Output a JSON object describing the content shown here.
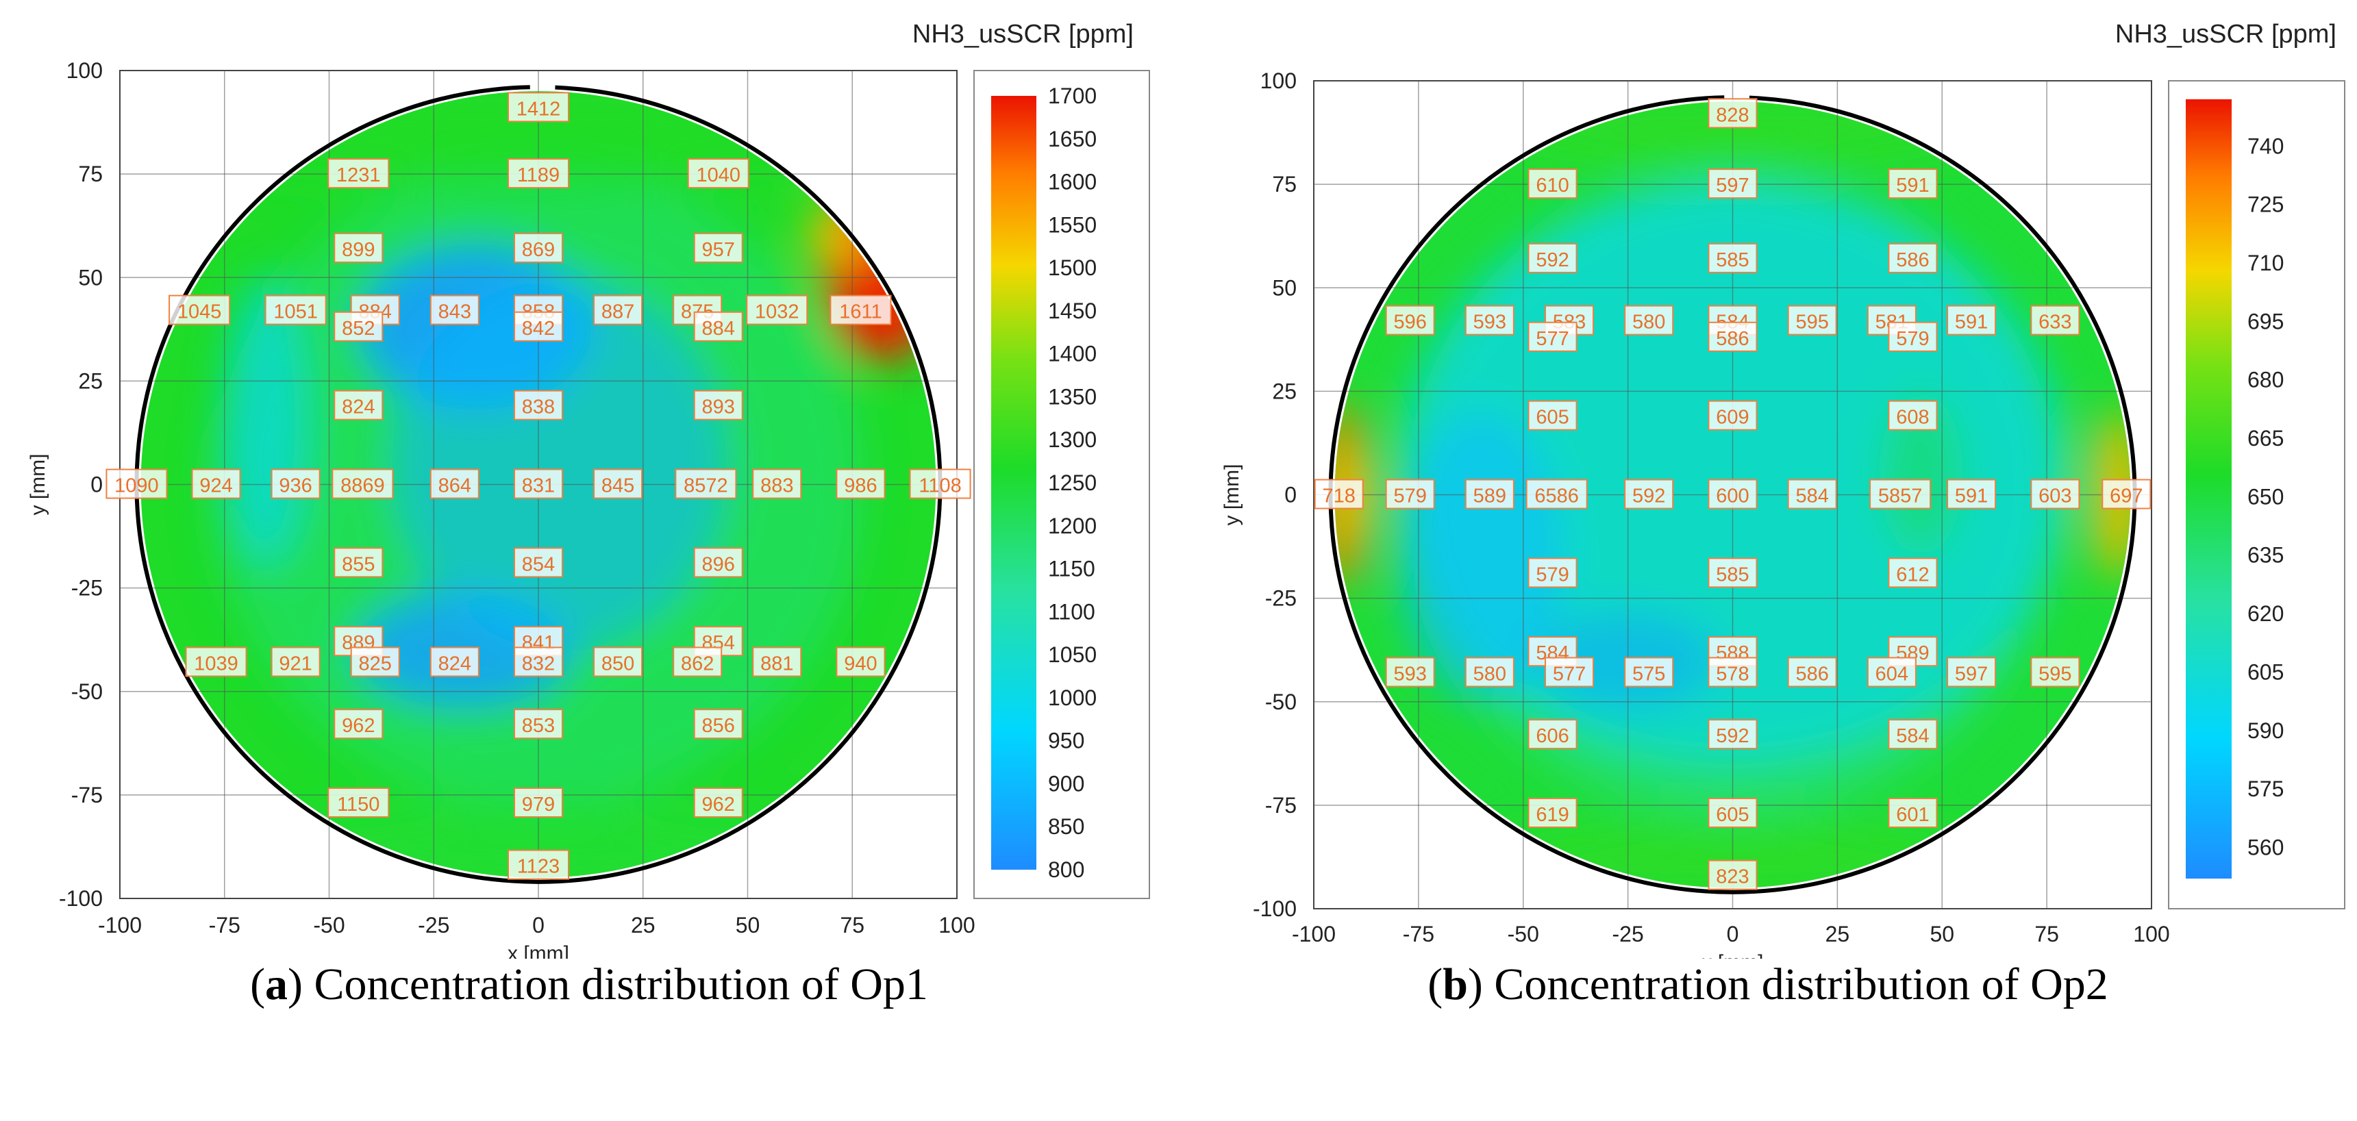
{
  "chart_data": [
    {
      "type": "heatmap",
      "caption_letter": "a",
      "caption_text": "Concentration distribution of Op1",
      "colorbar_title": "NH3_usSCR [ppm]",
      "xlabel": "x [mm]",
      "ylabel": "y [mm]",
      "xlim": [
        -100,
        100
      ],
      "ylim": [
        -100,
        100
      ],
      "xticks": [
        -100,
        -75,
        -50,
        -25,
        0,
        25,
        50,
        75,
        100
      ],
      "yticks": [
        100,
        75,
        50,
        25,
        0,
        -25,
        -50,
        -75,
        -100
      ],
      "colorbar_range": [
        800,
        1700
      ],
      "colorbar_ticks": [
        1700,
        1650,
        1600,
        1550,
        1500,
        1450,
        1400,
        1350,
        1300,
        1250,
        1200,
        1150,
        1100,
        1050,
        1000,
        950,
        900,
        850,
        800
      ],
      "points": [
        {
          "x": 0,
          "y": 91,
          "v": "1412"
        },
        {
          "x": -43,
          "y": 75,
          "v": "1231"
        },
        {
          "x": 0,
          "y": 75,
          "v": "1189"
        },
        {
          "x": 43,
          "y": 75,
          "v": "1040"
        },
        {
          "x": -43,
          "y": 57,
          "v": "899"
        },
        {
          "x": 0,
          "y": 57,
          "v": "869"
        },
        {
          "x": 43,
          "y": 57,
          "v": "957"
        },
        {
          "x": -81,
          "y": 42,
          "v": "1045"
        },
        {
          "x": -58,
          "y": 42,
          "v": "1051"
        },
        {
          "x": -39,
          "y": 42,
          "v": "884"
        },
        {
          "x": -20,
          "y": 42,
          "v": "843"
        },
        {
          "x": 0,
          "y": 42,
          "v": "858"
        },
        {
          "x": 19,
          "y": 42,
          "v": "887"
        },
        {
          "x": 38,
          "y": 42,
          "v": "875"
        },
        {
          "x": 57,
          "y": 42,
          "v": "1032"
        },
        {
          "x": 77,
          "y": 42,
          "v": "1611"
        },
        {
          "x": -43,
          "y": 38,
          "v": "852"
        },
        {
          "x": 0,
          "y": 38,
          "v": "842"
        },
        {
          "x": 43,
          "y": 38,
          "v": "884"
        },
        {
          "x": -43,
          "y": 19,
          "v": "824"
        },
        {
          "x": 0,
          "y": 19,
          "v": "838"
        },
        {
          "x": 43,
          "y": 19,
          "v": "893"
        },
        {
          "x": -96,
          "y": 0,
          "v": "1090"
        },
        {
          "x": -77,
          "y": 0,
          "v": "924"
        },
        {
          "x": -58,
          "y": 0,
          "v": "936"
        },
        {
          "x": -42,
          "y": 0,
          "v": "8869"
        },
        {
          "x": -20,
          "y": 0,
          "v": "864"
        },
        {
          "x": 0,
          "y": 0,
          "v": "831"
        },
        {
          "x": 19,
          "y": 0,
          "v": "845"
        },
        {
          "x": 40,
          "y": 0,
          "v": "8572"
        },
        {
          "x": 57,
          "y": 0,
          "v": "883"
        },
        {
          "x": 77,
          "y": 0,
          "v": "986"
        },
        {
          "x": 96,
          "y": 0,
          "v": "1108"
        },
        {
          "x": -43,
          "y": -19,
          "v": "855"
        },
        {
          "x": 0,
          "y": -19,
          "v": "854"
        },
        {
          "x": 43,
          "y": -19,
          "v": "896"
        },
        {
          "x": -43,
          "y": -38,
          "v": "889"
        },
        {
          "x": 0,
          "y": -38,
          "v": "841"
        },
        {
          "x": 43,
          "y": -38,
          "v": "854"
        },
        {
          "x": -77,
          "y": -43,
          "v": "1039"
        },
        {
          "x": -58,
          "y": -43,
          "v": "921"
        },
        {
          "x": -39,
          "y": -43,
          "v": "825"
        },
        {
          "x": -20,
          "y": -43,
          "v": "824"
        },
        {
          "x": 0,
          "y": -43,
          "v": "832"
        },
        {
          "x": 19,
          "y": -43,
          "v": "850"
        },
        {
          "x": 38,
          "y": -43,
          "v": "862"
        },
        {
          "x": 57,
          "y": -43,
          "v": "881"
        },
        {
          "x": 77,
          "y": -43,
          "v": "940"
        },
        {
          "x": -43,
          "y": -58,
          "v": "962"
        },
        {
          "x": 0,
          "y": -58,
          "v": "853"
        },
        {
          "x": 43,
          "y": -58,
          "v": "856"
        },
        {
          "x": -43,
          "y": -77,
          "v": "1150"
        },
        {
          "x": 0,
          "y": -77,
          "v": "979"
        },
        {
          "x": 43,
          "y": -77,
          "v": "962"
        },
        {
          "x": 0,
          "y": -92,
          "v": "1123"
        }
      ]
    },
    {
      "type": "heatmap",
      "caption_letter": "b",
      "caption_text": "Concentration distribution of Op2",
      "colorbar_title": "NH3_usSCR [ppm]",
      "xlabel": "x [mm]",
      "ylabel": "y [mm]",
      "xlim": [
        -100,
        100
      ],
      "ylim": [
        -100,
        100
      ],
      "xticks": [
        -100,
        -75,
        -50,
        -25,
        0,
        25,
        50,
        75,
        100
      ],
      "yticks": [
        100,
        75,
        50,
        25,
        0,
        -25,
        -50,
        -75,
        -100
      ],
      "colorbar_range": [
        552,
        752
      ],
      "colorbar_ticks": [
        740,
        725,
        710,
        695,
        680,
        665,
        650,
        635,
        620,
        605,
        590,
        575,
        560
      ],
      "points": [
        {
          "x": 0,
          "y": 92,
          "v": "828"
        },
        {
          "x": -43,
          "y": 75,
          "v": "610"
        },
        {
          "x": 0,
          "y": 75,
          "v": "597"
        },
        {
          "x": 43,
          "y": 75,
          "v": "591"
        },
        {
          "x": -43,
          "y": 57,
          "v": "592"
        },
        {
          "x": 0,
          "y": 57,
          "v": "585"
        },
        {
          "x": 43,
          "y": 57,
          "v": "586"
        },
        {
          "x": -77,
          "y": 42,
          "v": "596"
        },
        {
          "x": -58,
          "y": 42,
          "v": "593"
        },
        {
          "x": -39,
          "y": 42,
          "v": "583"
        },
        {
          "x": -20,
          "y": 42,
          "v": "580"
        },
        {
          "x": 0,
          "y": 42,
          "v": "584"
        },
        {
          "x": 19,
          "y": 42,
          "v": "595"
        },
        {
          "x": 38,
          "y": 42,
          "v": "581"
        },
        {
          "x": 57,
          "y": 42,
          "v": "591"
        },
        {
          "x": 77,
          "y": 42,
          "v": "633"
        },
        {
          "x": -43,
          "y": 38,
          "v": "577"
        },
        {
          "x": 0,
          "y": 38,
          "v": "586"
        },
        {
          "x": 43,
          "y": 38,
          "v": "579"
        },
        {
          "x": -43,
          "y": 19,
          "v": "605"
        },
        {
          "x": 0,
          "y": 19,
          "v": "609"
        },
        {
          "x": 43,
          "y": 19,
          "v": "608"
        },
        {
          "x": -94,
          "y": 0,
          "v": "718"
        },
        {
          "x": -77,
          "y": 0,
          "v": "579"
        },
        {
          "x": -58,
          "y": 0,
          "v": "589"
        },
        {
          "x": -42,
          "y": 0,
          "v": "6586"
        },
        {
          "x": -20,
          "y": 0,
          "v": "592"
        },
        {
          "x": 0,
          "y": 0,
          "v": "600"
        },
        {
          "x": 19,
          "y": 0,
          "v": "584"
        },
        {
          "x": 40,
          "y": 0,
          "v": "5857"
        },
        {
          "x": 57,
          "y": 0,
          "v": "591"
        },
        {
          "x": 77,
          "y": 0,
          "v": "603"
        },
        {
          "x": 94,
          "y": 0,
          "v": "697"
        },
        {
          "x": -43,
          "y": -19,
          "v": "579"
        },
        {
          "x": 0,
          "y": -19,
          "v": "585"
        },
        {
          "x": 43,
          "y": -19,
          "v": "612"
        },
        {
          "x": -43,
          "y": -38,
          "v": "584"
        },
        {
          "x": 0,
          "y": -38,
          "v": "588"
        },
        {
          "x": 43,
          "y": -38,
          "v": "589"
        },
        {
          "x": -77,
          "y": -43,
          "v": "593"
        },
        {
          "x": -58,
          "y": -43,
          "v": "580"
        },
        {
          "x": -39,
          "y": -43,
          "v": "577"
        },
        {
          "x": -20,
          "y": -43,
          "v": "575"
        },
        {
          "x": 0,
          "y": -43,
          "v": "578"
        },
        {
          "x": 19,
          "y": -43,
          "v": "586"
        },
        {
          "x": 38,
          "y": -43,
          "v": "604"
        },
        {
          "x": 57,
          "y": -43,
          "v": "597"
        },
        {
          "x": 77,
          "y": -43,
          "v": "595"
        },
        {
          "x": -43,
          "y": -58,
          "v": "606"
        },
        {
          "x": 0,
          "y": -58,
          "v": "592"
        },
        {
          "x": 43,
          "y": -58,
          "v": "584"
        },
        {
          "x": -43,
          "y": -77,
          "v": "619"
        },
        {
          "x": 0,
          "y": -77,
          "v": "605"
        },
        {
          "x": 43,
          "y": -77,
          "v": "601"
        },
        {
          "x": 0,
          "y": -92,
          "v": "823"
        }
      ]
    }
  ]
}
